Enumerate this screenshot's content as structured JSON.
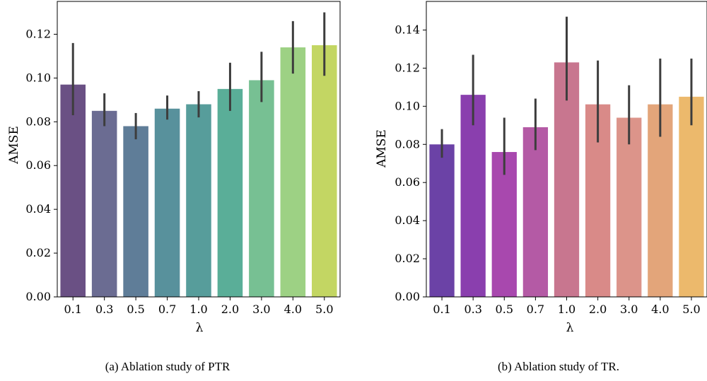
{
  "chart_data": [
    {
      "type": "bar",
      "caption": "(a) Ablation study of PTR",
      "xlabel": "λ",
      "ylabel": "AMSE",
      "ylim": [
        0,
        0.135
      ],
      "yticks": [
        "0.00",
        "0.02",
        "0.04",
        "0.06",
        "0.08",
        "0.10",
        "0.12"
      ],
      "categories": [
        "0.1",
        "0.3",
        "0.5",
        "0.7",
        "1.0",
        "2.0",
        "3.0",
        "4.0",
        "5.0"
      ],
      "values": [
        0.097,
        0.085,
        0.078,
        0.086,
        0.088,
        0.095,
        0.099,
        0.114,
        0.115
      ],
      "error_low": [
        0.083,
        0.078,
        0.072,
        0.081,
        0.082,
        0.085,
        0.089,
        0.102,
        0.101
      ],
      "error_high": [
        0.116,
        0.093,
        0.084,
        0.092,
        0.094,
        0.107,
        0.112,
        0.126,
        0.13
      ],
      "colors": [
        "#6a5084",
        "#6b6c92",
        "#5f7d98",
        "#58919c",
        "#579d9b",
        "#5aae98",
        "#77c093",
        "#9dd184",
        "#c3d663"
      ],
      "grid": false,
      "legend": "none"
    },
    {
      "type": "bar",
      "caption": "(b) Ablation study of TR.",
      "xlabel": "λ",
      "ylabel": "AMSE",
      "ylim": [
        0,
        0.155
      ],
      "yticks": [
        "0.00",
        "0.02",
        "0.04",
        "0.06",
        "0.08",
        "0.10",
        "0.12",
        "0.14"
      ],
      "categories": [
        "0.1",
        "0.3",
        "0.5",
        "0.7",
        "1.0",
        "2.0",
        "3.0",
        "4.0",
        "5.0"
      ],
      "values": [
        0.08,
        0.106,
        0.076,
        0.089,
        0.123,
        0.101,
        0.094,
        0.101,
        0.105
      ],
      "error_low": [
        0.073,
        0.09,
        0.064,
        0.077,
        0.103,
        0.081,
        0.08,
        0.084,
        0.09
      ],
      "error_high": [
        0.088,
        0.127,
        0.094,
        0.104,
        0.147,
        0.124,
        0.111,
        0.125,
        0.125
      ],
      "colors": [
        "#6b42a6",
        "#8a3fae",
        "#a848ae",
        "#b45aa5",
        "#c8768f",
        "#d98a88",
        "#dc948a",
        "#e3a57a",
        "#ecb96c"
      ],
      "grid": false,
      "legend": "none"
    }
  ]
}
